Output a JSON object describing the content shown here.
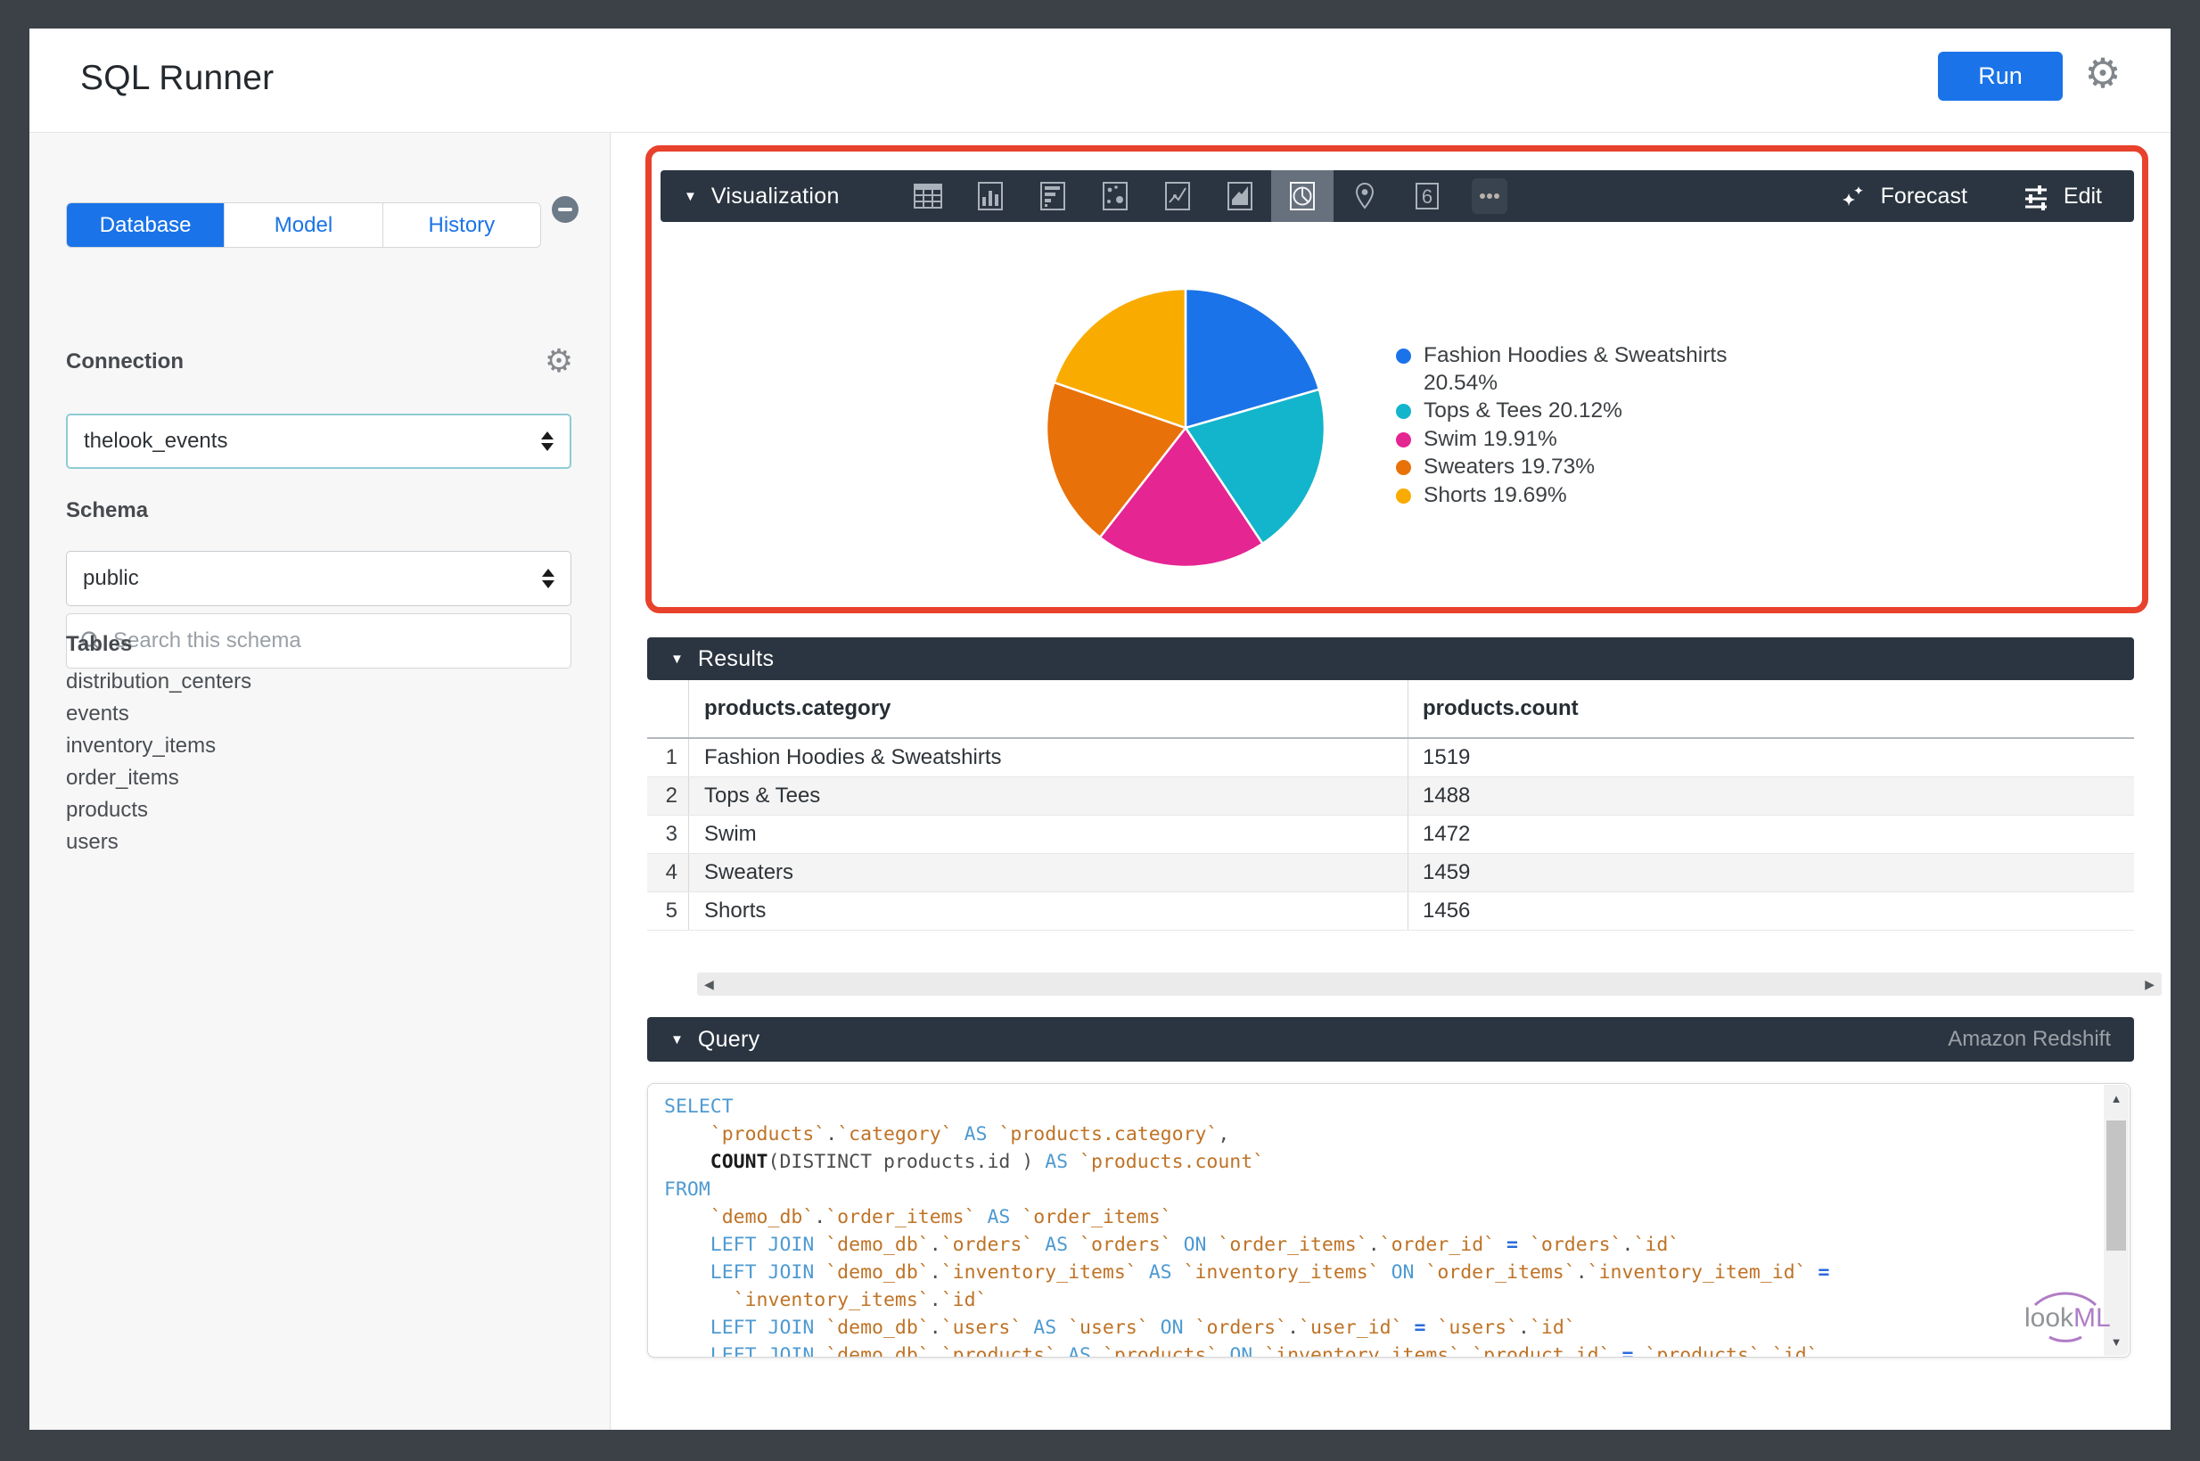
{
  "header": {
    "title": "SQL Runner",
    "run_label": "Run"
  },
  "sidebar": {
    "tabs": [
      {
        "label": "Database",
        "active": true
      },
      {
        "label": "Model",
        "active": false
      },
      {
        "label": "History",
        "active": false
      }
    ],
    "connection_label": "Connection",
    "connection_value": "thelook_events",
    "schema_label": "Schema",
    "schema_value": "public",
    "search_placeholder": "Search this schema",
    "tables_label": "Tables",
    "tables": [
      "distribution_centers",
      "events",
      "inventory_items",
      "order_items",
      "products",
      "users"
    ]
  },
  "visualization": {
    "panel_title": "Visualization",
    "forecast_label": "Forecast",
    "edit_label": "Edit",
    "icons": [
      "table-chart",
      "column-chart",
      "bar-chart",
      "scatter-chart",
      "line-chart",
      "area-chart",
      "pie-chart",
      "map-chart",
      "single-value",
      "more"
    ],
    "selected_icon": "pie-chart"
  },
  "chart_data": {
    "type": "pie",
    "categories": [
      "Fashion Hoodies & Sweatshirts",
      "Tops & Tees",
      "Swim",
      "Sweaters",
      "Shorts"
    ],
    "values": [
      1519,
      1488,
      1472,
      1459,
      1456
    ],
    "percents": [
      20.54,
      20.12,
      19.91,
      19.73,
      19.69
    ],
    "colors": [
      "#1a73e8",
      "#12b5cb",
      "#e52592",
      "#e8710a",
      "#f9ab00"
    ],
    "legend_position": "right",
    "start_angle_deg": 0,
    "title": ""
  },
  "results": {
    "panel_title": "Results",
    "columns": [
      "products.category",
      "products.count"
    ],
    "rows": [
      {
        "n": "1",
        "category": "Fashion Hoodies & Sweatshirts",
        "count": "1519"
      },
      {
        "n": "2",
        "category": "Tops & Tees",
        "count": "1488"
      },
      {
        "n": "3",
        "category": "Swim",
        "count": "1472"
      },
      {
        "n": "4",
        "category": "Sweaters",
        "count": "1459"
      },
      {
        "n": "5",
        "category": "Shorts",
        "count": "1456"
      }
    ]
  },
  "query": {
    "panel_title": "Query",
    "dialect": "Amazon Redshift",
    "sql_lines": [
      [
        [
          "k",
          "SELECT"
        ]
      ],
      [
        [
          "p",
          "    "
        ],
        [
          "i",
          "`products`"
        ],
        [
          "p",
          "."
        ],
        [
          "i",
          "`category`"
        ],
        [
          "p",
          " "
        ],
        [
          "k",
          "AS"
        ],
        [
          "p",
          " "
        ],
        [
          "i",
          "`products.category`"
        ],
        [
          "p",
          ","
        ]
      ],
      [
        [
          "p",
          "    "
        ],
        [
          "f",
          "COUNT"
        ],
        [
          "p",
          "(DISTINCT products.id ) "
        ],
        [
          "k",
          "AS"
        ],
        [
          "p",
          " "
        ],
        [
          "i",
          "`products.count`"
        ]
      ],
      [
        [
          "k",
          "FROM"
        ]
      ],
      [
        [
          "p",
          "    "
        ],
        [
          "i",
          "`demo_db`"
        ],
        [
          "p",
          "."
        ],
        [
          "i",
          "`order_items`"
        ],
        [
          "p",
          " "
        ],
        [
          "k",
          "AS"
        ],
        [
          "p",
          " "
        ],
        [
          "i",
          "`order_items`"
        ]
      ],
      [
        [
          "p",
          "    "
        ],
        [
          "k",
          "LEFT JOIN"
        ],
        [
          "p",
          " "
        ],
        [
          "i",
          "`demo_db`"
        ],
        [
          "p",
          "."
        ],
        [
          "i",
          "`orders`"
        ],
        [
          "p",
          " "
        ],
        [
          "k",
          "AS"
        ],
        [
          "p",
          " "
        ],
        [
          "i",
          "`orders`"
        ],
        [
          "p",
          " "
        ],
        [
          "k",
          "ON"
        ],
        [
          "p",
          " "
        ],
        [
          "i",
          "`order_items`"
        ],
        [
          "p",
          "."
        ],
        [
          "i",
          "`order_id`"
        ],
        [
          "p",
          " "
        ],
        [
          "o",
          "="
        ],
        [
          "p",
          " "
        ],
        [
          "i",
          "`orders`"
        ],
        [
          "p",
          "."
        ],
        [
          "i",
          "`id`"
        ]
      ],
      [
        [
          "p",
          "    "
        ],
        [
          "k",
          "LEFT JOIN"
        ],
        [
          "p",
          " "
        ],
        [
          "i",
          "`demo_db`"
        ],
        [
          "p",
          "."
        ],
        [
          "i",
          "`inventory_items`"
        ],
        [
          "p",
          " "
        ],
        [
          "k",
          "AS"
        ],
        [
          "p",
          " "
        ],
        [
          "i",
          "`inventory_items`"
        ],
        [
          "p",
          " "
        ],
        [
          "k",
          "ON"
        ],
        [
          "p",
          " "
        ],
        [
          "i",
          "`order_items`"
        ],
        [
          "p",
          "."
        ],
        [
          "i",
          "`inventory_item_id`"
        ],
        [
          "p",
          " "
        ],
        [
          "o",
          "="
        ]
      ],
      [
        [
          "p",
          "      "
        ],
        [
          "i",
          "`inventory_items`"
        ],
        [
          "p",
          "."
        ],
        [
          "i",
          "`id`"
        ]
      ],
      [
        [
          "p",
          "    "
        ],
        [
          "k",
          "LEFT JOIN"
        ],
        [
          "p",
          " "
        ],
        [
          "i",
          "`demo_db`"
        ],
        [
          "p",
          "."
        ],
        [
          "i",
          "`users`"
        ],
        [
          "p",
          " "
        ],
        [
          "k",
          "AS"
        ],
        [
          "p",
          " "
        ],
        [
          "i",
          "`users`"
        ],
        [
          "p",
          " "
        ],
        [
          "k",
          "ON"
        ],
        [
          "p",
          " "
        ],
        [
          "i",
          "`orders`"
        ],
        [
          "p",
          "."
        ],
        [
          "i",
          "`user_id`"
        ],
        [
          "p",
          " "
        ],
        [
          "o",
          "="
        ],
        [
          "p",
          " "
        ],
        [
          "i",
          "`users`"
        ],
        [
          "p",
          "."
        ],
        [
          "i",
          "`id`"
        ]
      ],
      [
        [
          "p",
          "    "
        ],
        [
          "k",
          "LEFT JOIN"
        ],
        [
          "p",
          " "
        ],
        [
          "i",
          "`demo_db`"
        ],
        [
          "p",
          "."
        ],
        [
          "i",
          "`products`"
        ],
        [
          "p",
          " "
        ],
        [
          "k",
          "AS"
        ],
        [
          "p",
          " "
        ],
        [
          "i",
          "`products`"
        ],
        [
          "p",
          " "
        ],
        [
          "k",
          "ON"
        ],
        [
          "p",
          " "
        ],
        [
          "i",
          "`inventory_items`"
        ],
        [
          "p",
          "."
        ],
        [
          "i",
          "`product_id`"
        ],
        [
          "p",
          " "
        ],
        [
          "o",
          "="
        ],
        [
          "p",
          " "
        ],
        [
          "i",
          "`products`"
        ],
        [
          "p",
          "."
        ],
        [
          "i",
          "`id`"
        ]
      ]
    ]
  },
  "watermark": {
    "part1": "look",
    "part2": "ML"
  },
  "colors": {
    "accent_blue": "#1a73e8",
    "panel_dark": "#2b3541",
    "annotation_red": "#e8412c",
    "sidebar_bg": "#f7f7f8"
  }
}
